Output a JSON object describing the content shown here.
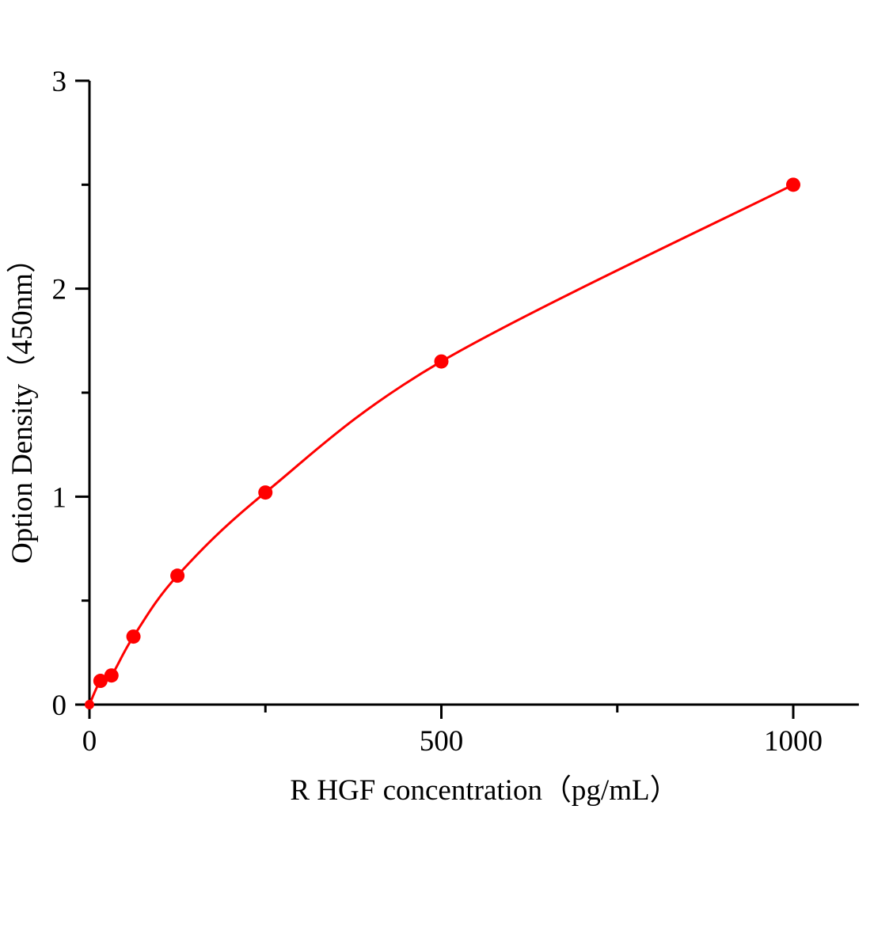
{
  "chart_data": {
    "type": "scatter",
    "title": "",
    "xlabel": "R HGF concentration（pg/mL）",
    "ylabel": "Option Density（450nm）",
    "xlim": [
      0,
      1100
    ],
    "ylim": [
      0,
      3
    ],
    "xticks": [
      0,
      500,
      1000
    ],
    "yticks": [
      0,
      1,
      2,
      3
    ],
    "x_minor_ticks": [
      250,
      750
    ],
    "y_minor_ticks": [
      0.5,
      1.5,
      2.5
    ],
    "grid": false,
    "color": "#ff0000",
    "fit_curve": true,
    "series": [
      {
        "x": [
          0,
          15.6,
          31.25,
          62.5,
          125,
          250,
          500,
          1000
        ],
        "y": [
          0,
          0.114,
          0.14,
          0.327,
          0.62,
          1.02,
          1.65,
          2.5
        ]
      }
    ]
  }
}
